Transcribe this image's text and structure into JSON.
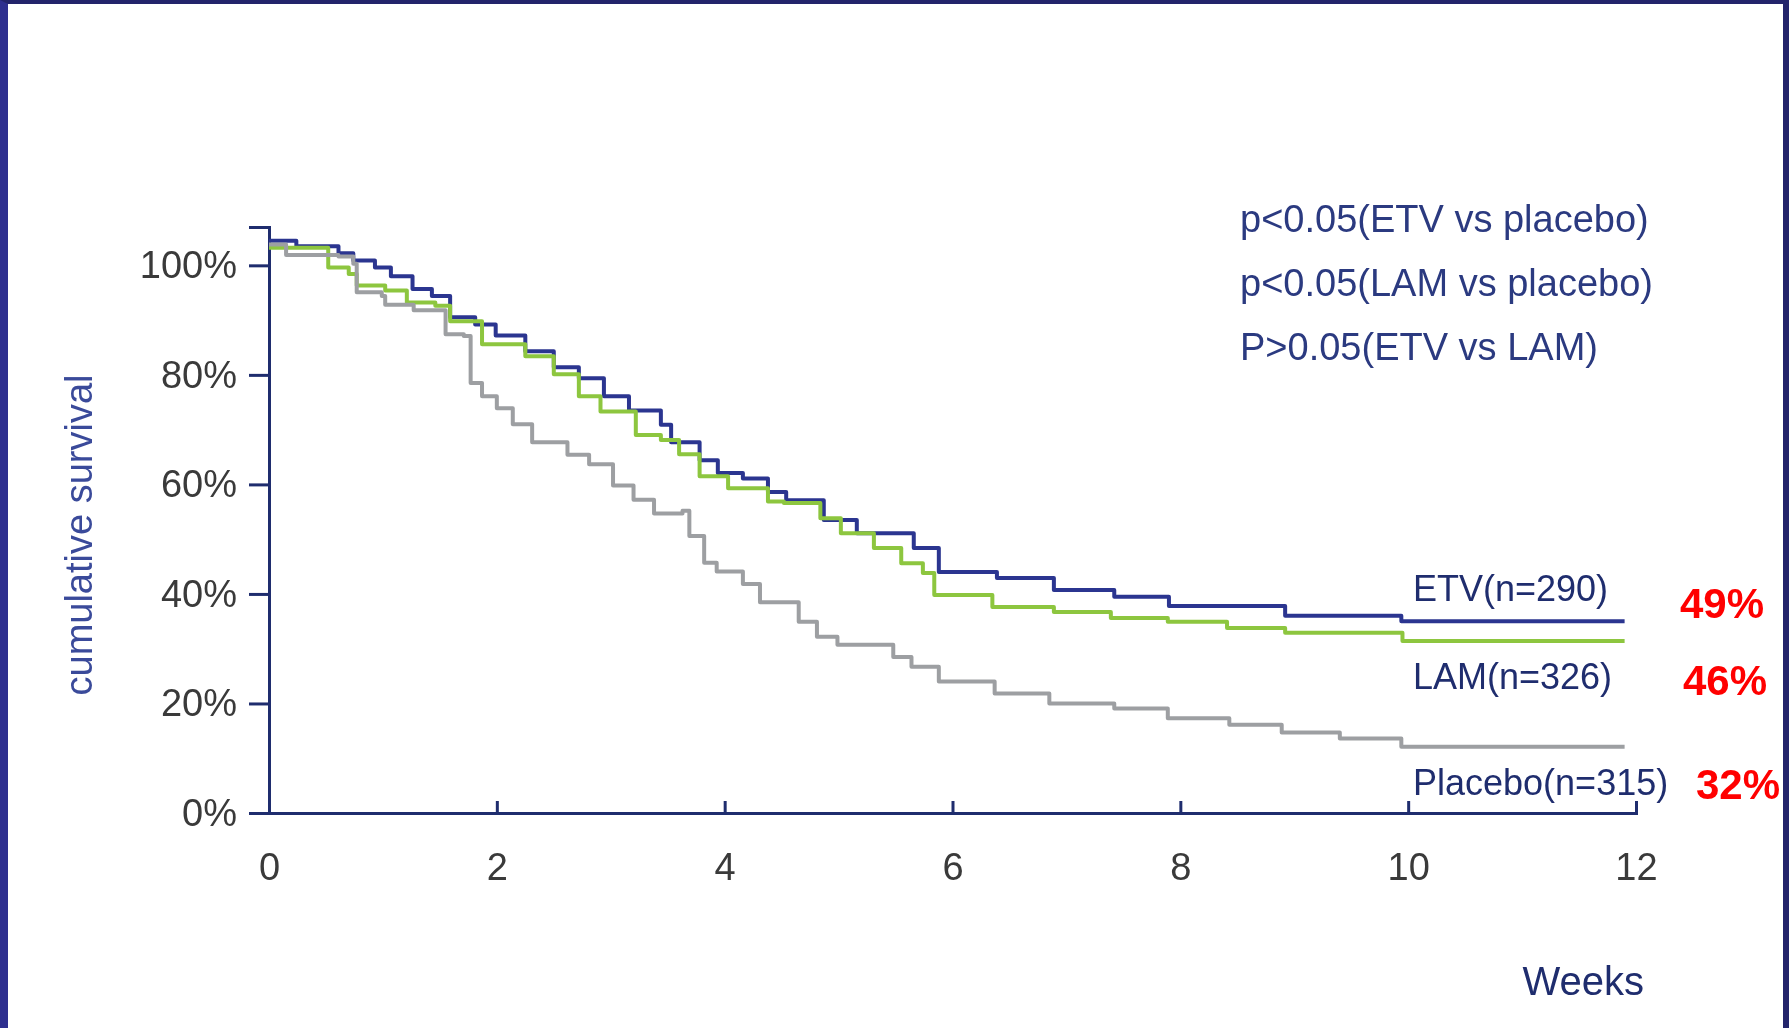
{
  "chart_data": {
    "type": "step",
    "xlabel": "Weeks",
    "ylabel": "cumulative survival",
    "xlim": [
      0,
      12
    ],
    "xticks": [
      0,
      2,
      4,
      6,
      8,
      10,
      12
    ],
    "ylim": [
      0,
      107
    ],
    "yticks": [
      {
        "value": 0,
        "label": "0%"
      },
      {
        "value": 20,
        "label": "20%"
      },
      {
        "value": 40,
        "label": "40%"
      },
      {
        "value": 60,
        "label": "60%"
      },
      {
        "value": 80,
        "label": "80%"
      },
      {
        "value": 100,
        "label": "100%"
      }
    ],
    "grid": false,
    "legend": false,
    "marker": "none",
    "line_style": "solid",
    "series": [
      {
        "name": "ETV(n=290)",
        "color": "#2b3590",
        "x": [
          0,
          0.24,
          0.61,
          0.74,
          0.93,
          1.07,
          1.26,
          1.43,
          1.59,
          1.81,
          1.99,
          2.25,
          2.5,
          2.72,
          2.94,
          3.16,
          3.44,
          3.53,
          3.78,
          3.94,
          4.16,
          4.38,
          4.54,
          4.87,
          5.16,
          5.66,
          5.88,
          6.39,
          6.89,
          7.42,
          7.9,
          8.92,
          9.94,
          11.9
        ],
        "values": [
          104.5,
          103.5,
          102.2,
          100.9,
          99.6,
          98,
          95.7,
          94.4,
          90.5,
          89.2,
          87.2,
          84.3,
          81.4,
          79.4,
          76.1,
          73.5,
          70.9,
          67.7,
          64.4,
          62.1,
          61.1,
          58.6,
          57.1,
          53.5,
          51.1,
          48.4,
          44,
          42.9,
          40.7,
          39.5,
          37.8,
          36,
          35,
          35
        ]
      },
      {
        "name": "LAM(n=326)",
        "color": "#8dc63f",
        "x": [
          0,
          0.52,
          0.7,
          0.77,
          1.02,
          1.21,
          1.46,
          1.59,
          1.87,
          2.25,
          2.5,
          2.72,
          2.91,
          3.22,
          3.44,
          3.6,
          3.78,
          4.03,
          4.38,
          4.52,
          4.84,
          5.02,
          5.31,
          5.55,
          5.74,
          5.84,
          6.35,
          6.89,
          7.39,
          7.89,
          8.41,
          8.92,
          9.95,
          11.9
        ],
        "values": [
          103.2,
          99.6,
          98.4,
          96.3,
          95.4,
          93.2,
          92.6,
          89.8,
          85.6,
          83.4,
          80.1,
          76.1,
          73.3,
          69,
          68.1,
          65.5,
          61.5,
          59.3,
          56.9,
          56.6,
          53.8,
          51.1,
          48.4,
          45.6,
          43.8,
          39.8,
          37.6,
          36.7,
          35.6,
          34.9,
          33.8,
          32.9,
          31.4,
          31.4
        ]
      },
      {
        "name": "Placebo(n=315)",
        "color": "#9d9fa2",
        "x": [
          0,
          0.15,
          0.61,
          0.74,
          0.77,
          0.99,
          1.02,
          1.27,
          1.55,
          1.71,
          1.77,
          1.87,
          2,
          2.14,
          2.31,
          2.62,
          2.81,
          3.02,
          3.2,
          3.38,
          3.63,
          3.69,
          3.82,
          3.93,
          4.16,
          4.31,
          4.65,
          4.81,
          4.99,
          5.48,
          5.64,
          5.88,
          6.37,
          6.85,
          7.42,
          7.89,
          8.43,
          8.89,
          9.4,
          9.94,
          11.9
        ],
        "values": [
          103.8,
          101.9,
          101.6,
          100.3,
          95.1,
          94.4,
          92.8,
          91.8,
          87.4,
          87.1,
          78.5,
          76.1,
          73.9,
          71,
          67.7,
          65.4,
          63.7,
          59.8,
          57.2,
          54.7,
          55.2,
          50.6,
          45.7,
          44.1,
          41.8,
          38.5,
          34.9,
          32.2,
          30.7,
          28.5,
          26.7,
          24,
          21.8,
          20,
          19.1,
          17.3,
          16.1,
          14.7,
          13.6,
          12.1,
          12.1
        ]
      }
    ],
    "annotations": [
      "p<0.05(ETV vs placebo)",
      "p<0.05(LAM vs placebo)",
      "P>0.05(ETV vs LAM)",
      "49%",
      "46%",
      "32%"
    ]
  }
}
